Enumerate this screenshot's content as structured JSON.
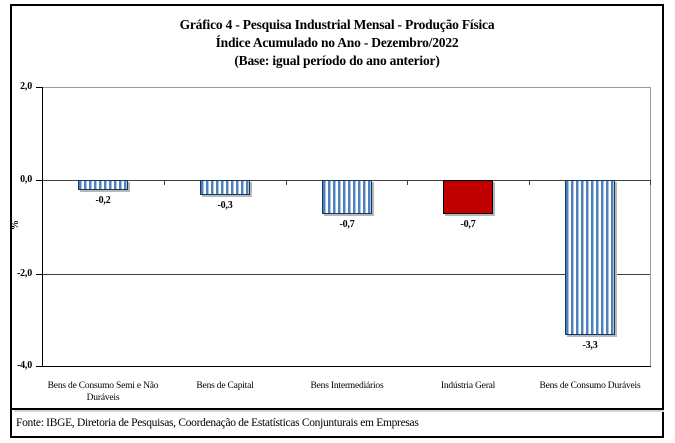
{
  "title": {
    "line1": "Gráfico 4 - Pesquisa Industrial Mensal - Produção Física",
    "line2": "Índice Acumulado no Ano - Dezembro/2022",
    "line3": "(Base: igual período do ano anterior)"
  },
  "chart_data": {
    "type": "bar",
    "title": "Gráfico 4 - Pesquisa Industrial Mensal - Produção Física — Índice Acumulado no Ano - Dezembro/2022 (Base: igual período do ano anterior)",
    "categories": [
      "Bens de Consumo Semi e Não Duráveis",
      "Bens de Capital",
      "Bens Intermediários",
      "Indústria Geral",
      "Bens de Consumo Duráveis"
    ],
    "category_lines": [
      [
        "Bens de Consumo Semi e Não",
        "Duráveis"
      ],
      [
        "Bens de Capital"
      ],
      [
        "Bens Intermediários"
      ],
      [
        "Indústria Geral"
      ],
      [
        "Bens de Consumo Duráveis"
      ]
    ],
    "values": [
      -0.2,
      -0.3,
      -0.7,
      -0.7,
      -3.3
    ],
    "value_labels": [
      "-0,2",
      "-0,3",
      "-0,7",
      "-0,7",
      "-3,3"
    ],
    "bar_styles": [
      "striped",
      "striped",
      "striped",
      "solid",
      "striped"
    ],
    "xlabel": "",
    "ylabel": "%",
    "ylim": [
      -4.0,
      2.0
    ],
    "yticks": [
      {
        "label": "2,0",
        "value": 2.0
      },
      {
        "label": "0,0",
        "value": 0.0
      },
      {
        "label": "-2,0",
        "value": -2.0
      },
      {
        "label": "-4,0",
        "value": -4.0
      }
    ],
    "gridlines_at": [
      0.0,
      -2.0
    ],
    "grid": "horizontal",
    "legend": "none",
    "colors": {
      "striped_bar_stripe": "#4f81bd",
      "striped_bar_stripe_light": "#a9c2e0",
      "striped_bar_background": "#ffffff",
      "striped_bar_border": "#17375d",
      "solid_bar_fill": "#c00000",
      "solid_bar_border": "#000000",
      "gridline": "#3f3f3f",
      "axis": "#000000",
      "plot_border": "#999999",
      "shadow": "#b8b8b8"
    }
  },
  "footer": {
    "source": "Fonte: IBGE, Diretoria de Pesquisas, Coordenação de Estatísticas Conjunturais em Empresas"
  }
}
